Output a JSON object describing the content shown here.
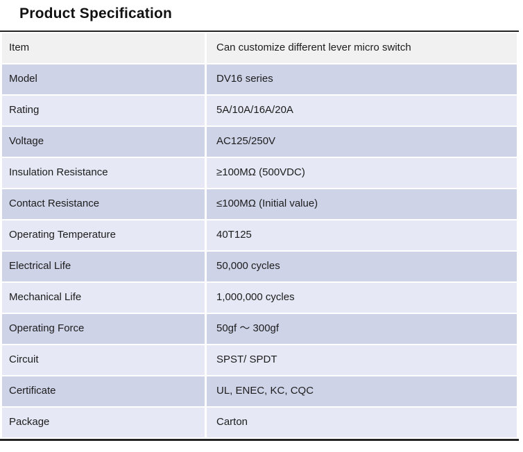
{
  "page": {
    "title": "Product Specification"
  },
  "table": {
    "colors": {
      "header_row_bg": "#f1f1f1",
      "row_dark_bg": "#ced3e8",
      "row_light_bg": "#e6e9f5",
      "rule": "#222222",
      "text": "#1c1c1c"
    },
    "rows": [
      {
        "label": "Item",
        "value": "Can customize different lever micro switch"
      },
      {
        "label": "Model",
        "value": "DV16 series"
      },
      {
        "label": "Rating",
        "value": "5A/10A/16A/20A"
      },
      {
        "label": "Voltage",
        "value": "AC125/250V"
      },
      {
        "label": "Insulation Resistance",
        "value": "≥100MΩ (500VDC)"
      },
      {
        "label": "Contact Resistance",
        "value": "≤100MΩ (Initial value)"
      },
      {
        "label": "Operating Temperature",
        "value": "40T125"
      },
      {
        "label": "Electrical Life",
        "value": "50,000 cycles"
      },
      {
        "label": "Mechanical Life",
        "value": "1,000,000 cycles"
      },
      {
        "label": "Operating Force",
        "value": "50gf ～ 300gf"
      },
      {
        "label": "Circuit",
        "value": "SPST/ SPDT"
      },
      {
        "label": "Certificate",
        "value": "UL, ENEC, KC, CQC"
      },
      {
        "label": "Package",
        "value": "Carton"
      }
    ]
  }
}
